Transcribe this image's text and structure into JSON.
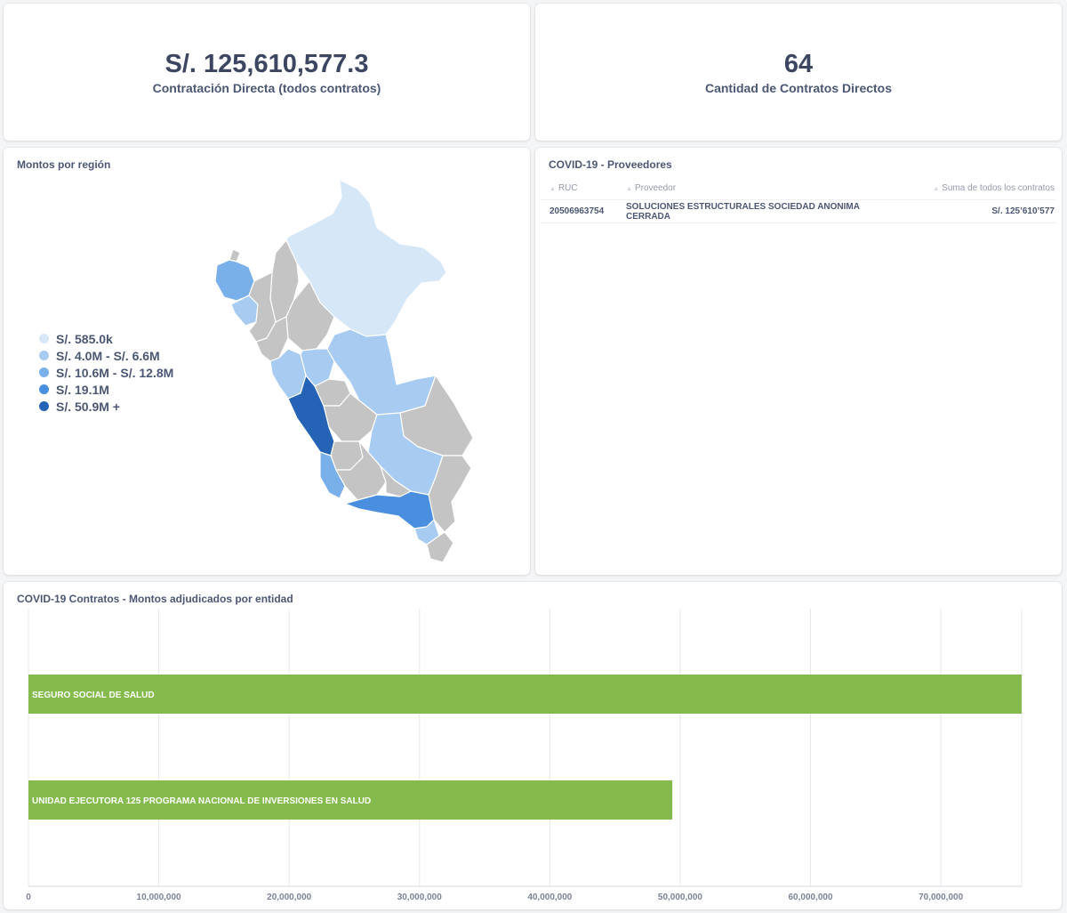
{
  "kpi_total": {
    "value": "S/. 125,610,577.3",
    "label": "Contratación Directa (todos contratos)"
  },
  "kpi_count": {
    "value": "64",
    "label": "Cantidad de Contratos Directos"
  },
  "map_card": {
    "title": "Montos por región",
    "legend": [
      {
        "label": "S/. 585.0k",
        "color": "#d6e7f7"
      },
      {
        "label": "S/. 4.0M - S/. 6.6M",
        "color": "#a8ccf1"
      },
      {
        "label": "S/. 10.6M - S/. 12.8M",
        "color": "#7ab0ea"
      },
      {
        "label": "S/. 19.1M",
        "color": "#4a8fdf"
      },
      {
        "label": "S/. 50.9M +",
        "color": "#2563b6"
      }
    ],
    "no_data_color": "#c4c4c4"
  },
  "providers_card": {
    "title": "COVID-19 - Proveedores",
    "columns": [
      "RUC",
      "Proveedor",
      "Suma de todos los contratos"
    ],
    "rows": [
      {
        "ruc": "20506963754",
        "proveedor": "SOLUCIONES ESTRUCTURALES SOCIEDAD ANONIMA CERRADA",
        "suma": "S/. 125’610’577"
      }
    ]
  },
  "bar_card": {
    "title": "COVID-19 Contratos - Montos adjudicados por entidad"
  },
  "chart_data": {
    "type": "bar",
    "orientation": "horizontal",
    "categories": [
      "SEGURO SOCIAL DE SALUD",
      "UNIDAD EJECUTORA 125 PROGRAMA NACIONAL DE INVERSIONES EN SALUD"
    ],
    "values": [
      76200000,
      49400000
    ],
    "xlim": [
      0,
      76200000
    ],
    "xticks": [
      0,
      10000000,
      20000000,
      30000000,
      40000000,
      50000000,
      60000000,
      70000000
    ],
    "xtick_labels": [
      "0",
      "10,000,000",
      "20,000,000",
      "30,000,000",
      "40,000,000",
      "50,000,000",
      "60,000,000",
      "70,000,000"
    ],
    "bar_color": "#84bb4c",
    "grid": true
  }
}
